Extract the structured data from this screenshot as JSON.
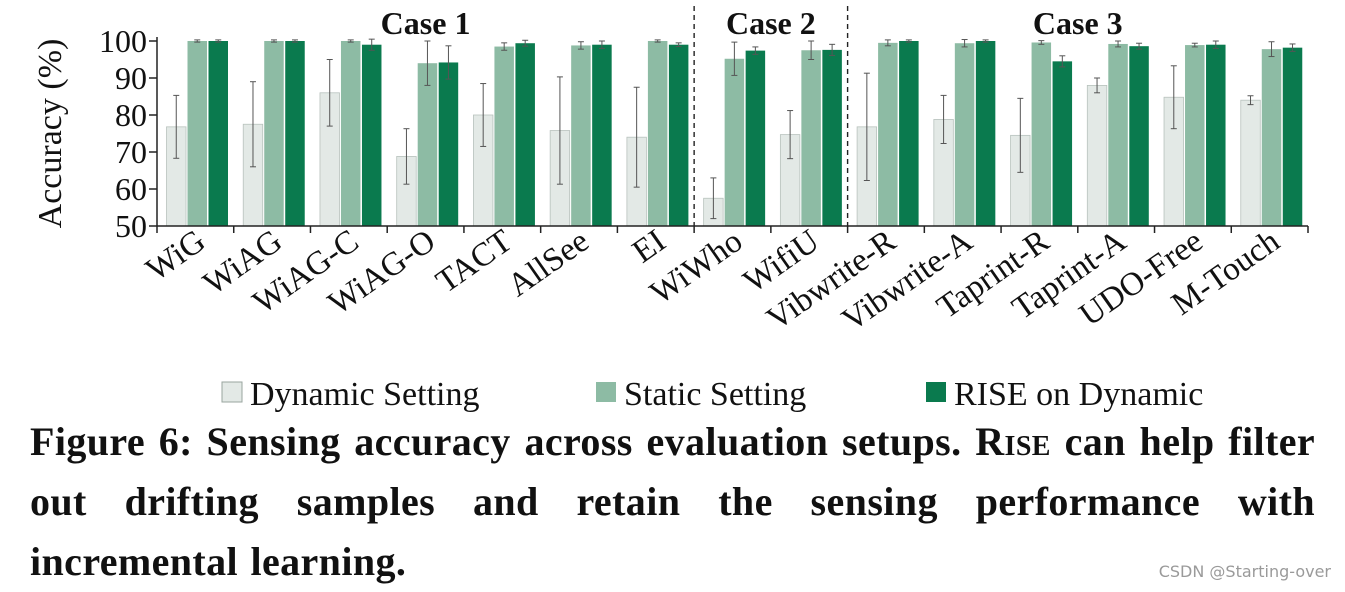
{
  "chart_data": {
    "type": "bar",
    "ylabel": "Accuracy (%)",
    "ylim": [
      50,
      100
    ],
    "yticks": [
      50,
      60,
      70,
      80,
      90,
      100
    ],
    "grid": false,
    "legend_position": "bottom",
    "categories": [
      "WiG",
      "WiAG",
      "WiAG-C",
      "WiAG-O",
      "TACT",
      "AllSee",
      "EI",
      "WiWho",
      "WifiU",
      "Vibwrite-R",
      "Vibwrite-A",
      "Taprint-R",
      "Taprint-A",
      "UDO-Free",
      "M-Touch"
    ],
    "groups": [
      {
        "label": "Case 1",
        "start": 0,
        "end": 6
      },
      {
        "label": "Case 2",
        "start": 7,
        "end": 8
      },
      {
        "label": "Case 3",
        "start": 9,
        "end": 14
      }
    ],
    "series": [
      {
        "name": "Dynamic Setting",
        "color": "#e3e9e6",
        "values": [
          76.8,
          77.5,
          86.0,
          68.8,
          80.0,
          75.8,
          74.0,
          57.5,
          74.7,
          76.8,
          78.8,
          74.5,
          88.0,
          84.8,
          84.0
        ],
        "errors": [
          8.5,
          11.5,
          9.0,
          7.5,
          8.5,
          14.5,
          13.5,
          5.5,
          6.5,
          14.5,
          6.5,
          10.0,
          2.0,
          8.5,
          1.2
        ]
      },
      {
        "name": "Static Setting",
        "color": "#8dbba4",
        "values": [
          100.0,
          100.0,
          100.0,
          94.0,
          98.5,
          98.8,
          100.0,
          95.2,
          97.5,
          99.5,
          99.4,
          99.6,
          99.2,
          98.9,
          97.8
        ],
        "errors": [
          0.3,
          0.3,
          0.3,
          6.0,
          1.0,
          1.0,
          0.3,
          4.5,
          2.5,
          0.8,
          1.0,
          0.5,
          0.8,
          0.5,
          2.0
        ]
      },
      {
        "name": "RISE on Dynamic",
        "color": "#0a7a4e",
        "values": [
          100.0,
          100.0,
          99.0,
          94.2,
          99.4,
          99.0,
          99.0,
          97.4,
          97.6,
          100.0,
          100.0,
          94.5,
          98.6,
          99.0,
          98.2
        ],
        "errors": [
          0.3,
          0.3,
          1.5,
          4.5,
          0.8,
          1.0,
          0.5,
          1.0,
          1.5,
          0.3,
          0.3,
          1.5,
          0.8,
          1.0,
          1.0
        ]
      }
    ]
  },
  "caption": {
    "lead": "Figure 6: Sensing accuracy across evaluation setups.",
    "name": "Rise",
    "rest": "can help filter out drifting samples and retain the sensing performance with incremental learning."
  },
  "watermark": "CSDN @Starting-over"
}
